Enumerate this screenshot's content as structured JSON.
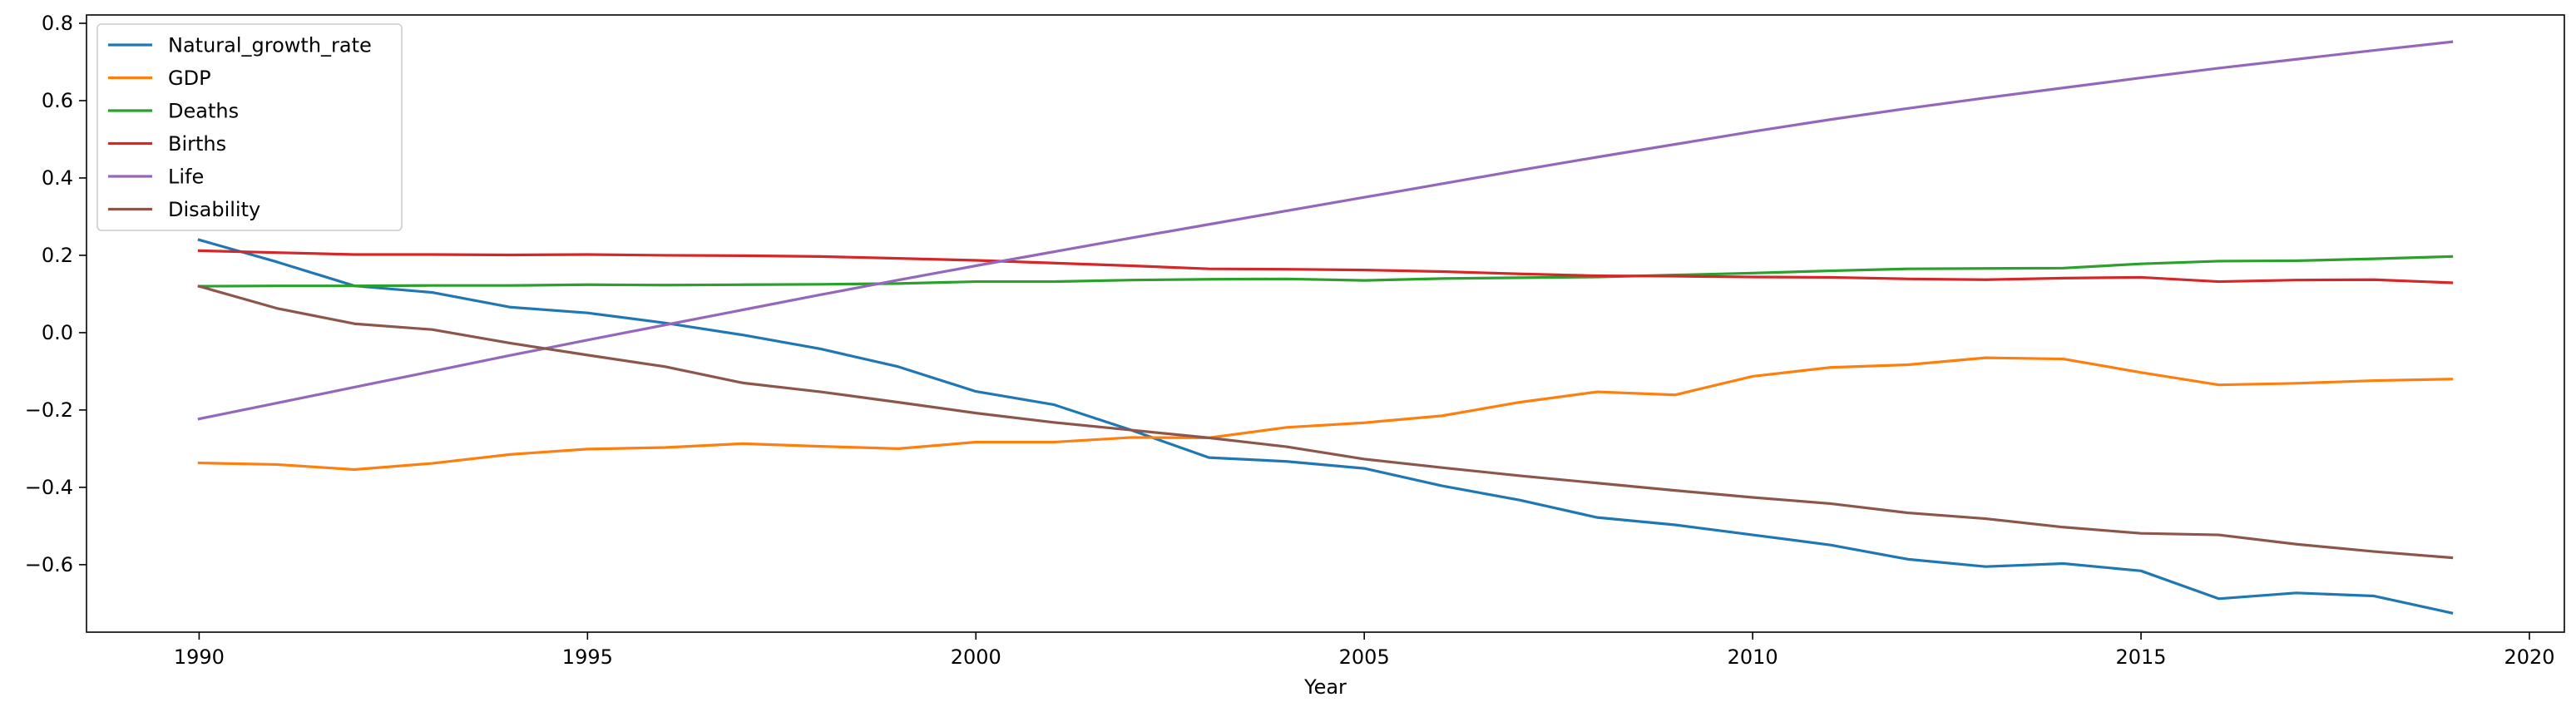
{
  "chart_data": {
    "type": "line",
    "title": "",
    "xlabel": "Year",
    "ylabel": "",
    "xlim": [
      1988.55,
      2020.45
    ],
    "ylim": [
      -0.7745,
      0.8215
    ],
    "grid": false,
    "legend_position": "upper-left",
    "x_ticks": [
      1990,
      1995,
      2000,
      2005,
      2010,
      2015,
      2020
    ],
    "x_tick_labels": [
      "1990",
      "1995",
      "2000",
      "2005",
      "2010",
      "2015",
      "2020"
    ],
    "y_ticks": [
      -0.6,
      -0.4,
      -0.2,
      0.0,
      0.2,
      0.4,
      0.6,
      0.8
    ],
    "y_tick_labels": [
      "−0.6",
      "−0.4",
      "−0.2",
      "0.0",
      "0.2",
      "0.4",
      "0.6",
      "0.8"
    ],
    "x": [
      1990,
      1991,
      1992,
      1993,
      1994,
      1995,
      1996,
      1997,
      1998,
      1999,
      2000,
      2001,
      2002,
      2003,
      2004,
      2005,
      2006,
      2007,
      2008,
      2009,
      2010,
      2011,
      2012,
      2013,
      2014,
      2015,
      2016,
      2017,
      2018,
      2019
    ],
    "series": [
      {
        "name": "Natural_growth_rate",
        "color": "#1f77b4",
        "values": [
          0.24,
          0.183,
          0.121,
          0.104,
          0.066,
          0.051,
          0.025,
          -0.006,
          -0.042,
          -0.088,
          -0.152,
          -0.186,
          -0.252,
          -0.323,
          -0.333,
          -0.351,
          -0.396,
          -0.433,
          -0.478,
          -0.497,
          -0.523,
          -0.549,
          -0.586,
          -0.605,
          -0.597,
          -0.616,
          -0.688,
          -0.673,
          -0.681,
          -0.725
        ]
      },
      {
        "name": "GDP",
        "color": "#ff7f0e",
        "values": [
          -0.337,
          -0.341,
          -0.354,
          -0.338,
          -0.315,
          -0.301,
          -0.297,
          -0.287,
          -0.294,
          -0.3,
          -0.283,
          -0.283,
          -0.271,
          -0.272,
          -0.245,
          -0.233,
          -0.215,
          -0.18,
          -0.153,
          -0.161,
          -0.113,
          -0.09,
          -0.083,
          -0.065,
          -0.068,
          -0.103,
          -0.135,
          -0.131,
          -0.124,
          -0.12
        ]
      },
      {
        "name": "Deaths",
        "color": "#2ca02c",
        "values": [
          0.12,
          0.121,
          0.121,
          0.122,
          0.122,
          0.124,
          0.123,
          0.124,
          0.125,
          0.127,
          0.132,
          0.132,
          0.136,
          0.138,
          0.139,
          0.135,
          0.14,
          0.142,
          0.144,
          0.149,
          0.154,
          0.16,
          0.165,
          0.166,
          0.167,
          0.178,
          0.185,
          0.186,
          0.191,
          0.197
        ]
      },
      {
        "name": "Births",
        "color": "#d62728",
        "values": [
          0.212,
          0.207,
          0.202,
          0.202,
          0.201,
          0.202,
          0.2,
          0.199,
          0.197,
          0.192,
          0.187,
          0.18,
          0.173,
          0.165,
          0.164,
          0.162,
          0.158,
          0.152,
          0.147,
          0.146,
          0.144,
          0.143,
          0.139,
          0.137,
          0.141,
          0.143,
          0.132,
          0.136,
          0.137,
          0.129
        ]
      },
      {
        "name": "Life",
        "color": "#9467bd",
        "values": [
          -0.223,
          -0.182,
          -0.141,
          -0.1,
          -0.059,
          -0.019,
          0.02,
          0.059,
          0.098,
          0.136,
          0.173,
          0.209,
          0.245,
          0.28,
          0.315,
          0.35,
          0.385,
          0.42,
          0.454,
          0.487,
          0.52,
          0.551,
          0.58,
          0.607,
          0.633,
          0.659,
          0.684,
          0.707,
          0.73,
          0.752
        ]
      },
      {
        "name": "Disability",
        "color": "#8c564b",
        "values": [
          0.12,
          0.063,
          0.023,
          0.008,
          -0.027,
          -0.058,
          -0.088,
          -0.13,
          -0.153,
          -0.18,
          -0.208,
          -0.232,
          -0.252,
          -0.272,
          -0.295,
          -0.327,
          -0.349,
          -0.37,
          -0.389,
          -0.408,
          -0.426,
          -0.442,
          -0.466,
          -0.481,
          -0.503,
          -0.519,
          -0.523,
          -0.547,
          -0.566,
          -0.582
        ]
      }
    ]
  }
}
